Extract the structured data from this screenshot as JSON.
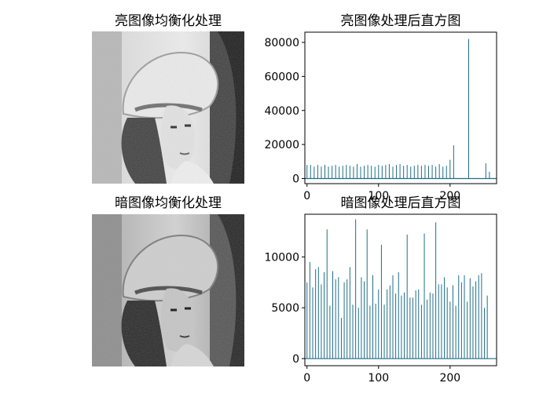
{
  "panels": {
    "bright_image_title": "亮图像均衡化处理",
    "dark_image_title": "暗图像均衡化处理"
  },
  "images": {
    "bright": {
      "subject": "grayscale portrait photograph (woman with wide-brimmed hat), histogram-equalized, high brightness"
    },
    "dark": {
      "subject": "grayscale portrait photograph (woman with wide-brimmed hat), histogram-equalized, medium tone"
    }
  },
  "colors": {
    "bar": "#1f6f88",
    "axis": "#000000",
    "background": "#ffffff"
  },
  "chart_data": [
    {
      "type": "bar",
      "title": "亮图像处理后直方图",
      "xlabel": "",
      "ylabel": "",
      "xlim": [
        -3,
        265
      ],
      "ylim": [
        -3000,
        86000
      ],
      "xticks": [
        0,
        100,
        200
      ],
      "yticks": [
        0,
        20000,
        40000,
        60000,
        80000
      ],
      "x": [
        0,
        5,
        10,
        15,
        20,
        25,
        30,
        35,
        40,
        45,
        50,
        55,
        60,
        65,
        70,
        75,
        80,
        85,
        90,
        95,
        100,
        105,
        110,
        115,
        120,
        125,
        130,
        135,
        140,
        145,
        150,
        155,
        160,
        165,
        170,
        175,
        180,
        185,
        190,
        195,
        200,
        205,
        226,
        250,
        255
      ],
      "values": [
        8000,
        8000,
        7000,
        8000,
        7000,
        8000,
        7000,
        7500,
        8000,
        7000,
        7500,
        8000,
        7500,
        7000,
        8500,
        7000,
        7500,
        8000,
        7500,
        7000,
        8000,
        7500,
        8000,
        8500,
        7000,
        8000,
        8500,
        7500,
        8000,
        7000,
        7500,
        8000,
        7500,
        8000,
        7500,
        8000,
        7000,
        8500,
        7000,
        7500,
        11000,
        19500,
        82000,
        9000,
        4000
      ]
    },
    {
      "type": "bar",
      "title": "暗图像处理后直方图",
      "xlabel": "",
      "ylabel": "",
      "xlim": [
        -3,
        265
      ],
      "ylim": [
        -700,
        14200
      ],
      "xticks": [
        0,
        100,
        200
      ],
      "yticks": [
        0,
        5000,
        10000
      ],
      "x": [
        0,
        4,
        8,
        12,
        16,
        20,
        24,
        28,
        32,
        36,
        40,
        44,
        48,
        52,
        56,
        60,
        64,
        68,
        72,
        76,
        80,
        84,
        88,
        92,
        96,
        100,
        104,
        108,
        112,
        116,
        120,
        124,
        128,
        132,
        136,
        140,
        144,
        148,
        152,
        156,
        160,
        164,
        168,
        172,
        176,
        180,
        184,
        188,
        192,
        196,
        200,
        204,
        208,
        212,
        216,
        220,
        224,
        228,
        232,
        236,
        240,
        244,
        248,
        252
      ],
      "values": [
        7500,
        9500,
        7000,
        8800,
        9000,
        7300,
        8500,
        12700,
        5200,
        8600,
        7800,
        8000,
        4000,
        7500,
        7800,
        9000,
        5300,
        13700,
        5000,
        8000,
        7600,
        12700,
        5200,
        8200,
        5400,
        6800,
        11200,
        5300,
        6800,
        7200,
        8200,
        6400,
        8500,
        6200,
        6500,
        12200,
        6000,
        6000,
        6700,
        6800,
        5300,
        12300,
        5800,
        6500,
        6400,
        13400,
        7300,
        7300,
        8000,
        7000,
        5600,
        7200,
        5200,
        8200,
        7500,
        8200,
        5600,
        7900,
        7100,
        7600,
        8200,
        8400,
        5000,
        6200
      ]
    }
  ]
}
